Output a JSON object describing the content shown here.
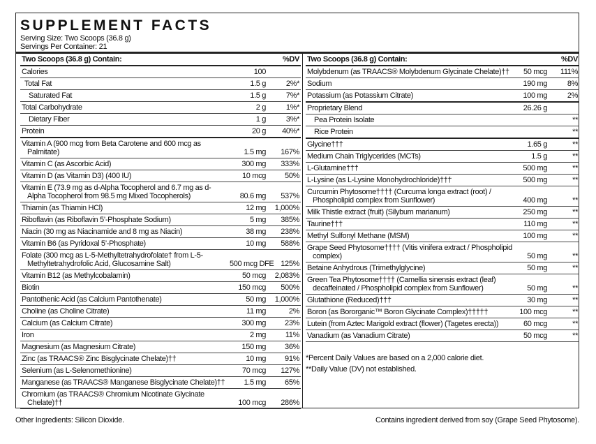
{
  "header": {
    "title": "SUPPLEMENT FACTS",
    "serving_size": "Serving Size: Two Scoops (36.8 g)",
    "servings": "Servings Per Container: 21"
  },
  "left": {
    "heading": "Two Scoops (36.8 g) Contain:",
    "dv_heading": "%DV",
    "groups": [
      [
        {
          "name": "Calories",
          "amount": "100"
        },
        {
          "name": "Total Fat",
          "amount": "1.5 g",
          "dv": "2%*"
        },
        {
          "name": "Saturated Fat",
          "amount": "1.5 g",
          "dv": "7%*"
        },
        {
          "name": "Total Carbohydrate",
          "amount": "2 g",
          "dv": "1%*"
        },
        {
          "name": "Dietary Fiber",
          "amount": "1 g",
          "dv": "3%*"
        },
        {
          "name": "Protein",
          "amount": "20 g",
          "dv": "40%*"
        }
      ],
      [
        {
          "name": "Vitamin A (900 mcg from Beta Carotene and 600 mcg as Palmitate)",
          "amount": "1.5 mg",
          "dv": "167%"
        },
        {
          "name": "Vitamin C (as Ascorbic Acid)",
          "amount": "300 mg",
          "dv": "333%"
        },
        {
          "name": "Vitamin D (as Vitamin D3) (400 IU)",
          "amount": "10 mcg",
          "dv": "50%"
        },
        {
          "name": "Vitamin E (73.9 mg as d-Alpha Tocopherol and 6.7 mg as d-Alpha Tocopherol from 98.5 mg Mixed Tocopherols)",
          "amount": "80.6 mg",
          "dv": "537%"
        },
        {
          "name": "Thiamin (as Thiamin HCl)",
          "amount": "12 mg",
          "dv": "1,000%"
        },
        {
          "name": "Riboflavin (as Riboflavin 5’-Phosphate Sodium)",
          "amount": "5 mg",
          "dv": "385%"
        },
        {
          "name": "Niacin (30 mg as Niacinamide and 8 mg as Niacin)",
          "amount": "38 mg",
          "dv": "238%"
        },
        {
          "name": "Vitamin B6 (as Pyridoxal 5’-Phosphate)",
          "amount": "10 mg",
          "dv": "588%"
        },
        {
          "name": "Folate (300 mcg as L-5-Methyltetrahydrofolate† from L-5-Methyltetrahydrofolic Acid, Glucosamine Salt)",
          "amount": "500 mcg DFE",
          "dv": "125%"
        },
        {
          "name": "Vitamin B12 (as Methylcobalamin)",
          "amount": "50 mcg",
          "dv": "2,083%"
        },
        {
          "name": "Biotin",
          "amount": "150 mcg",
          "dv": "500%"
        },
        {
          "name": "Pantothenic Acid (as Calcium Pantothenate)",
          "amount": "50 mg",
          "dv": "1,000%"
        },
        {
          "name": "Choline (as Choline Citrate)",
          "amount": "11 mg",
          "dv": "2%"
        },
        {
          "name": "Calcium (as Calcium Citrate)",
          "amount": "300 mg",
          "dv": "23%"
        },
        {
          "name": "Iron",
          "amount": "2 mg",
          "dv": "11%"
        },
        {
          "name": "Magnesium (as Magnesium Citrate)",
          "amount": "150 mg",
          "dv": "36%"
        },
        {
          "name": "Zinc (as TRAACS® Zinc Bisglycinate Chelate)††",
          "amount": "10 mg",
          "dv": "91%"
        },
        {
          "name": "Selenium (as L-Selenomethionine)",
          "amount": "70 mcg",
          "dv": "127%"
        },
        {
          "name": "Manganese (as TRAACS® Manganese Bisglycinate Chelate)††",
          "amount": "1.5 mg",
          "dv": "65%"
        },
        {
          "name": "Chromium (as TRAACS® Chromium Nicotinate Glycinate Chelate)††",
          "amount": "100 mcg",
          "dv": "286%"
        }
      ]
    ]
  },
  "right": {
    "heading": "Two Scoops (36.8 g) Contain:",
    "dv_heading": "%DV",
    "groups": [
      [
        {
          "name": "Molybdenum (as TRAACS® Molybdenum Glycinate Chelate)††",
          "amount": "50 mcg",
          "dv": "111%"
        },
        {
          "name": "Sodium",
          "amount": "190 mg",
          "dv": "8%"
        },
        {
          "name": "Potassium (as Potassium Citrate)",
          "amount": "100 mg",
          "dv": "2%"
        }
      ],
      [
        {
          "name": "Proprietary Blend",
          "amount": "26.26 g"
        },
        {
          "name": "Pea Protein Isolate",
          "dv": "**"
        },
        {
          "name": "Rice Protein",
          "dv": "**"
        }
      ],
      [
        {
          "name": "Glycine†††",
          "amount": "1.65 g",
          "dv": "**"
        },
        {
          "name": "Medium Chain Triglycerides (MCTs)",
          "amount": "1.5 g",
          "dv": "**"
        },
        {
          "name": "L-Glutamine†††",
          "amount": "500 mg",
          "dv": "**"
        },
        {
          "name": "L-Lysine (as L-Lysine Monohydrochloride)†††",
          "amount": "500 mg",
          "dv": "**"
        },
        {
          "name": "Curcumin Phytosome†††† (Curcuma longa extract (root) / Phospholipid complex from Sunflower)",
          "amount": "400 mg",
          "dv": "**"
        },
        {
          "name": "Milk Thistle extract (fruit) (Silybum marianum)",
          "amount": "250 mg",
          "dv": "**"
        },
        {
          "name": "Taurine†††",
          "amount": "110 mg",
          "dv": "**"
        },
        {
          "name": "Methyl Sulfonyl Methane (MSM)",
          "amount": "100 mg",
          "dv": "**"
        },
        {
          "name": "Grape Seed Phytosome†††† (Vitis vinifera extract / Phospholipid complex)",
          "amount": "50 mg",
          "dv": "**"
        },
        {
          "name": "Betaine Anhydrous (Trimethylglycine)",
          "amount": "50 mg",
          "dv": "**"
        },
        {
          "name": "Green Tea Phytosome†††† (Camellia sinensis extract (leaf) decaffeinated / Phospholipid complex from Sunflower)",
          "amount": "50 mg",
          "dv": "**"
        },
        {
          "name": "Glutathione (Reduced)†††",
          "amount": "30 mg",
          "dv": "**"
        },
        {
          "name": "Boron (as Bororganic™ Boron Glycinate Complex)†††††",
          "amount": "100 mcg",
          "dv": "**"
        },
        {
          "name": "Lutein (from Aztec Marigold extract (flower) (Tagetes erecta))",
          "amount": "60 mcg",
          "dv": "**"
        },
        {
          "name": "Vanadium (as Vanadium Citrate)",
          "amount": "50 mcg",
          "dv": "**"
        }
      ]
    ],
    "footnotes": [
      "*Percent Daily Values are based on a 2,000 calorie diet.",
      "**Daily Value (DV) not established."
    ]
  },
  "footer": {
    "ingredients": "Other Ingredients: Silicon Dioxide.",
    "allergen": "Contains ingredient derived from soy (Grape Seed Phytosome)."
  }
}
